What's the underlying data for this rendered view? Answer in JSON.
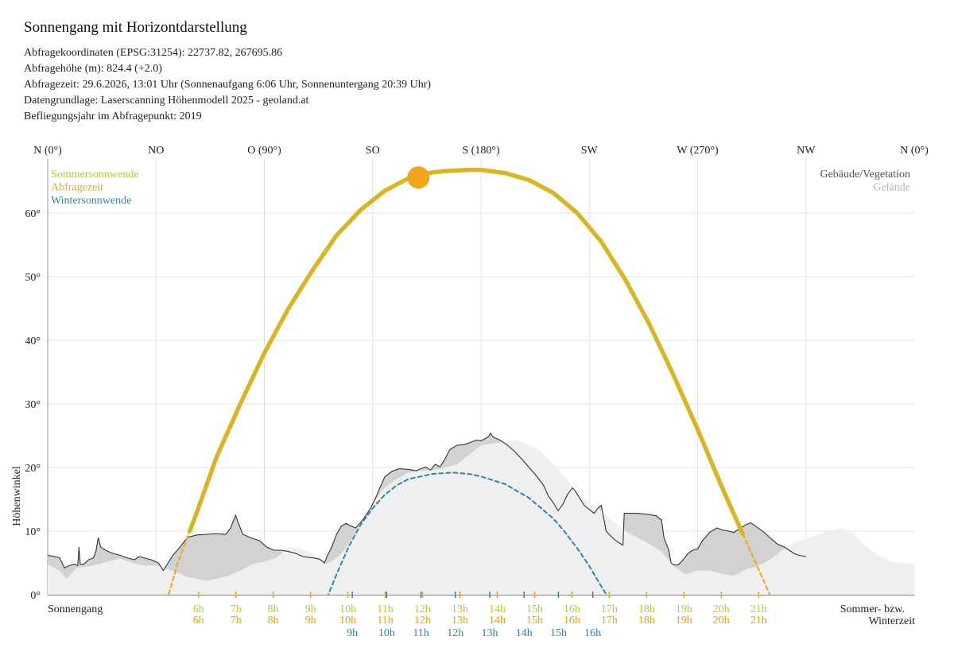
{
  "header": {
    "title": "Sonnengang mit Horizontdarstellung",
    "lines": [
      "Abfragekoordinaten (EPSG:31254): 22737.82, 267695.86",
      "Abfragehöhe (m): 824.4 (+2.0)",
      "Abfragezeit: 29.6.2026, 13:01 Uhr (Sonnenaufgang 6:06 Uhr,  Sonnenuntergang 20:39 Uhr)",
      "Datengrundlage: Laserscanning Höhenmodell 2025 - geoland.at",
      "Befliegungsjahr im Abfragepunkt: 2019"
    ]
  },
  "colors": {
    "summer": "#b8c930",
    "query": "#f2a81d",
    "winter": "#2f86a6",
    "terrain": "#efefef",
    "buildings": "#d2d2d2",
    "skyline": "#333333",
    "grid": "#e2e2e2",
    "sun": "#f5a31a"
  },
  "chart_data": {
    "type": "line",
    "xlabel": "",
    "ylabel": "Höhenwinkel",
    "xlim": [
      0,
      360
    ],
    "ylim": [
      0,
      70
    ],
    "grid": true,
    "top_axis_labels": [
      {
        "az": 0,
        "label": "N (0°)"
      },
      {
        "az": 45,
        "label": "NO"
      },
      {
        "az": 90,
        "label": "O (90°)"
      },
      {
        "az": 135,
        "label": "SO"
      },
      {
        "az": 180,
        "label": "S (180°)"
      },
      {
        "az": 225,
        "label": "SW"
      },
      {
        "az": 270,
        "label": "W (270°)"
      },
      {
        "az": 315,
        "label": "NW"
      },
      {
        "az": 360,
        "label": "N (0°)"
      }
    ],
    "y_ticks": [
      {
        "v": 0,
        "label": "0°"
      },
      {
        "v": 10,
        "label": "10°"
      },
      {
        "v": 20,
        "label": "20°"
      },
      {
        "v": 30,
        "label": "30°"
      },
      {
        "v": 40,
        "label": "40°"
      },
      {
        "v": 50,
        "label": "50°"
      },
      {
        "v": 60,
        "label": "60°"
      }
    ],
    "legend_left": [
      {
        "label": "Sommersonnwende",
        "color_key": "summer"
      },
      {
        "label": "Abfragezeit",
        "color_key": "query"
      },
      {
        "label": "Wintersonnwende",
        "color_key": "winter"
      }
    ],
    "legend_right": [
      {
        "label": "Gebäude/Vegetation",
        "color": "#555555"
      },
      {
        "label": "Gelände",
        "color": "#b8b8b8"
      }
    ],
    "bottom_left_label": "Sonnengang",
    "bottom_right_label": [
      "Sommer- bzw.",
      "Winterzeit"
    ],
    "series": [
      {
        "name": "Sommersonnwende",
        "color_key": "summer",
        "points": [
          [
            49.5,
            -1
          ],
          [
            54,
            5
          ],
          [
            62,
            13
          ],
          [
            70,
            21.5
          ],
          [
            80,
            30
          ],
          [
            90,
            38
          ],
          [
            100,
            45
          ],
          [
            110,
            51
          ],
          [
            120,
            56.5
          ],
          [
            130,
            60.5
          ],
          [
            140,
            63.5
          ],
          [
            150,
            65.5
          ],
          [
            160,
            66.4
          ],
          [
            165,
            66.6
          ],
          [
            170,
            66.7
          ],
          [
            175,
            66.8
          ],
          [
            180,
            66.8
          ],
          [
            190,
            66.3
          ],
          [
            200,
            65.2
          ],
          [
            210,
            63.2
          ],
          [
            220,
            60
          ],
          [
            230,
            55.5
          ],
          [
            240,
            49.5
          ],
          [
            250,
            42.5
          ],
          [
            260,
            34.5
          ],
          [
            270,
            26
          ],
          [
            280,
            17
          ],
          [
            290,
            8.5
          ],
          [
            300,
            0
          ],
          [
            304,
            -3
          ]
        ]
      },
      {
        "name": "Abfragezeit",
        "color_key": "query",
        "points": [
          [
            49.5,
            -1
          ],
          [
            54,
            5
          ],
          [
            62,
            13
          ],
          [
            70,
            21.5
          ],
          [
            80,
            30
          ],
          [
            90,
            38
          ],
          [
            100,
            45
          ],
          [
            110,
            51
          ],
          [
            120,
            56.5
          ],
          [
            130,
            60.5
          ],
          [
            140,
            63.5
          ],
          [
            150,
            65.5
          ],
          [
            160,
            66.4
          ],
          [
            165,
            66.6
          ],
          [
            170,
            66.7
          ],
          [
            175,
            66.8
          ],
          [
            180,
            66.8
          ],
          [
            190,
            66.3
          ],
          [
            200,
            65.2
          ],
          [
            210,
            63.2
          ],
          [
            220,
            60
          ],
          [
            230,
            55.5
          ],
          [
            240,
            49.5
          ],
          [
            250,
            42.5
          ],
          [
            260,
            34.5
          ],
          [
            270,
            26
          ],
          [
            280,
            17
          ],
          [
            290,
            8.5
          ],
          [
            300,
            0
          ],
          [
            304,
            -3
          ]
        ]
      },
      {
        "name": "Wintersonnwende",
        "color_key": "winter",
        "points": [
          [
            116,
            -0.5
          ],
          [
            120,
            3.2
          ],
          [
            125,
            7.5
          ],
          [
            130,
            11
          ],
          [
            135,
            13.6
          ],
          [
            140,
            15.7
          ],
          [
            145,
            17.2
          ],
          [
            150,
            18.2
          ],
          [
            160,
            19
          ],
          [
            168,
            19.2
          ],
          [
            175,
            19
          ],
          [
            180,
            18.6
          ],
          [
            190,
            17.4
          ],
          [
            200,
            15.2
          ],
          [
            210,
            12
          ],
          [
            215,
            9.8
          ],
          [
            220,
            7.3
          ],
          [
            225,
            4.5
          ],
          [
            230,
            1.3
          ],
          [
            233,
            -0.5
          ]
        ]
      }
    ],
    "current_sun": {
      "az": 154,
      "alt": 65.6
    },
    "terrain": [
      [
        0,
        4.8
      ],
      [
        5,
        3.8
      ],
      [
        8,
        2.5
      ],
      [
        12,
        4.2
      ],
      [
        18,
        4.5
      ],
      [
        25,
        5.2
      ],
      [
        30,
        5.7
      ],
      [
        35,
        5
      ],
      [
        40,
        4.6
      ],
      [
        45,
        4.6
      ],
      [
        50,
        4
      ],
      [
        54,
        3.5
      ],
      [
        58,
        2.8
      ],
      [
        62,
        2.5
      ],
      [
        66,
        2.2
      ],
      [
        70,
        2.5
      ],
      [
        75,
        3
      ],
      [
        80,
        3.8
      ],
      [
        85,
        4.8
      ],
      [
        90,
        5.2
      ],
      [
        95,
        5.8
      ],
      [
        100,
        7.5
      ],
      [
        105,
        7.2
      ],
      [
        110,
        6.5
      ],
      [
        115,
        4.8
      ],
      [
        118,
        5.2
      ],
      [
        122,
        6.5
      ],
      [
        125,
        8
      ],
      [
        128,
        10
      ],
      [
        130,
        11.5
      ],
      [
        135,
        14.5
      ],
      [
        140,
        16.8
      ],
      [
        145,
        18.2
      ],
      [
        150,
        19.2
      ],
      [
        155,
        19.5
      ],
      [
        160,
        19.6
      ],
      [
        165,
        20
      ],
      [
        170,
        20.5
      ],
      [
        175,
        22
      ],
      [
        180,
        23.5
      ],
      [
        185,
        23.8
      ],
      [
        190,
        24
      ],
      [
        195,
        24.3
      ],
      [
        200,
        23.5
      ],
      [
        205,
        22.5
      ],
      [
        210,
        20.5
      ],
      [
        215,
        18.5
      ],
      [
        220,
        16
      ],
      [
        225,
        14.5
      ],
      [
        230,
        13.2
      ],
      [
        235,
        11.5
      ],
      [
        240,
        10
      ],
      [
        245,
        9
      ],
      [
        250,
        8
      ],
      [
        255,
        6.8
      ],
      [
        260,
        4.5
      ],
      [
        265,
        3.2
      ],
      [
        270,
        3.8
      ],
      [
        275,
        3.8
      ],
      [
        280,
        3.3
      ],
      [
        285,
        3
      ],
      [
        290,
        4
      ],
      [
        295,
        4.5
      ],
      [
        300,
        5.5
      ],
      [
        305,
        7
      ],
      [
        310,
        8.3
      ],
      [
        315,
        8.8
      ],
      [
        320,
        9.5
      ],
      [
        325,
        10
      ],
      [
        330,
        10.5
      ],
      [
        335,
        9.5
      ],
      [
        340,
        7.5
      ],
      [
        345,
        6.2
      ],
      [
        350,
        5.2
      ],
      [
        355,
        5
      ],
      [
        360,
        4.8
      ]
    ],
    "skyline": [
      [
        0,
        6.2
      ],
      [
        3,
        6
      ],
      [
        5,
        5.8
      ],
      [
        7,
        4.2
      ],
      [
        9,
        4.6
      ],
      [
        11,
        4.8
      ],
      [
        12.5,
        4.6
      ],
      [
        13,
        7.5
      ],
      [
        13.5,
        4.8
      ],
      [
        15,
        4.8
      ],
      [
        17,
        5.5
      ],
      [
        19,
        5.8
      ],
      [
        20,
        6.8
      ],
      [
        21,
        9
      ],
      [
        22,
        7.5
      ],
      [
        24,
        7
      ],
      [
        27,
        6.5
      ],
      [
        30,
        6.2
      ],
      [
        33,
        5.8
      ],
      [
        36,
        5.5
      ],
      [
        38,
        6
      ],
      [
        40,
        5.8
      ],
      [
        43,
        5.5
      ],
      [
        46,
        5
      ],
      [
        48,
        3.8
      ],
      [
        50,
        5
      ],
      [
        52,
        6.2
      ],
      [
        55,
        7.5
      ],
      [
        58,
        9
      ],
      [
        62,
        9.4
      ],
      [
        66,
        9.5
      ],
      [
        70,
        9.6
      ],
      [
        74,
        9.5
      ],
      [
        76,
        10.5
      ],
      [
        78,
        12.5
      ],
      [
        79.5,
        11
      ],
      [
        81,
        9.5
      ],
      [
        84,
        9
      ],
      [
        88,
        8.5
      ],
      [
        91,
        7.5
      ],
      [
        94,
        7
      ],
      [
        97,
        7
      ],
      [
        100,
        6.8
      ],
      [
        103,
        6.5
      ],
      [
        106,
        6
      ],
      [
        110,
        5.8
      ],
      [
        113,
        5.6
      ],
      [
        115,
        5
      ],
      [
        116,
        6
      ],
      [
        118,
        7.5
      ],
      [
        120,
        9.5
      ],
      [
        122,
        10.8
      ],
      [
        124,
        11.2
      ],
      [
        126,
        10.8
      ],
      [
        128,
        10.5
      ],
      [
        131,
        11.8
      ],
      [
        134,
        13.5
      ],
      [
        136,
        15
      ],
      [
        138,
        16.8
      ],
      [
        140,
        18.5
      ],
      [
        143,
        19.4
      ],
      [
        146,
        19.8
      ],
      [
        150,
        19.7
      ],
      [
        153,
        19.5
      ],
      [
        155,
        19.8
      ],
      [
        157,
        20.1
      ],
      [
        159,
        19.6
      ],
      [
        161,
        20.5
      ],
      [
        163,
        20.1
      ],
      [
        165,
        21.3
      ],
      [
        167,
        22.8
      ],
      [
        170,
        23.5
      ],
      [
        173,
        23.6
      ],
      [
        176,
        24
      ],
      [
        178,
        24.3
      ],
      [
        180,
        24.2
      ],
      [
        183,
        24.8
      ],
      [
        184,
        25.4
      ],
      [
        185,
        24.8
      ],
      [
        188,
        24.3
      ],
      [
        191,
        23.5
      ],
      [
        194,
        22.5
      ],
      [
        197,
        21.3
      ],
      [
        200,
        20
      ],
      [
        203,
        18.7
      ],
      [
        206,
        17.2
      ],
      [
        208,
        15.5
      ],
      [
        210,
        14.5
      ],
      [
        212,
        13.2
      ],
      [
        214,
        14.2
      ],
      [
        216,
        15.8
      ],
      [
        218,
        16.8
      ],
      [
        219,
        16.4
      ],
      [
        221,
        15.2
      ],
      [
        223,
        14
      ],
      [
        225,
        13.4
      ],
      [
        227,
        12.8
      ],
      [
        229,
        13.8
      ],
      [
        230,
        14
      ],
      [
        231,
        12
      ],
      [
        232,
        10
      ],
      [
        234,
        9.2
      ],
      [
        236,
        8.5
      ],
      [
        238,
        8
      ],
      [
        239,
        7.8
      ],
      [
        239.5,
        12.8
      ],
      [
        241,
        12.8
      ],
      [
        245,
        12.8
      ],
      [
        250,
        12.6
      ],
      [
        253,
        12.4
      ],
      [
        254,
        12
      ],
      [
        255,
        11.8
      ],
      [
        256,
        9
      ],
      [
        258,
        7
      ],
      [
        259,
        5
      ],
      [
        260,
        4.7
      ],
      [
        262,
        4.7
      ],
      [
        264,
        5.5
      ],
      [
        266,
        6.5
      ],
      [
        268,
        7
      ],
      [
        270,
        7.2
      ],
      [
        272,
        8.5
      ],
      [
        275,
        9.8
      ],
      [
        278,
        10.5
      ],
      [
        280,
        10.2
      ],
      [
        283,
        10
      ],
      [
        285,
        9.8
      ],
      [
        288,
        10.5
      ],
      [
        290,
        11
      ],
      [
        292,
        11.3
      ],
      [
        294,
        10.8
      ],
      [
        297,
        10
      ],
      [
        300,
        9
      ],
      [
        303,
        8
      ],
      [
        306,
        7.5
      ],
      [
        308,
        7
      ],
      [
        310,
        6.5
      ],
      [
        312,
        6.2
      ],
      [
        315,
        6
      ]
    ]
  }
}
